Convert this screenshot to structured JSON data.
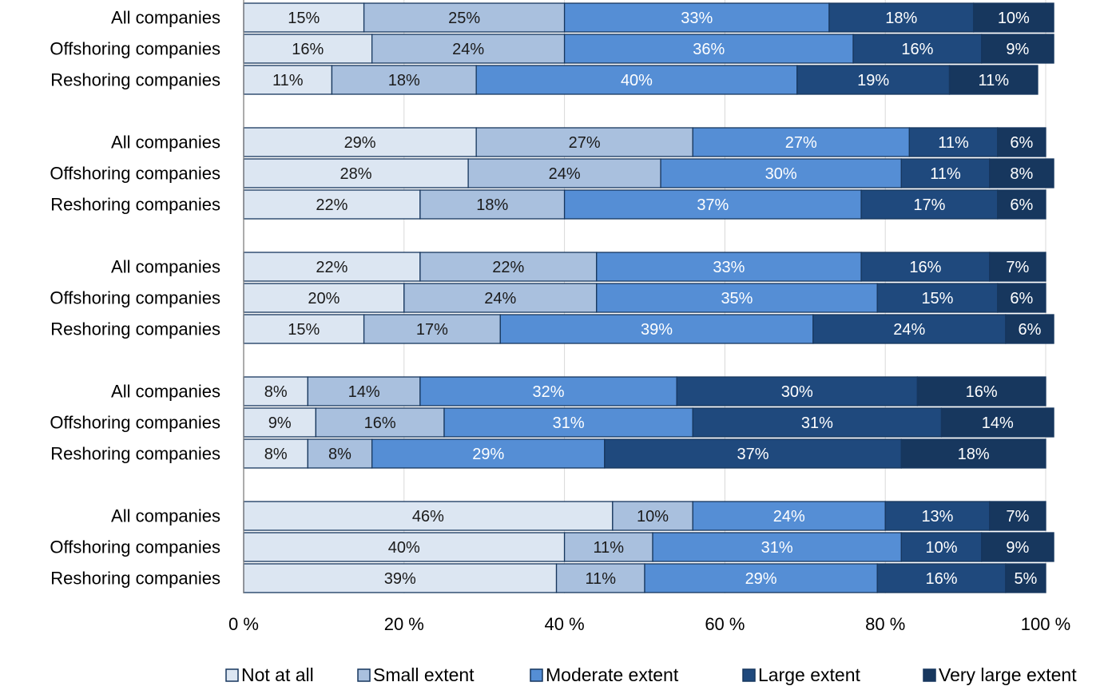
{
  "chart_data": {
    "type": "bar",
    "orientation": "horizontal",
    "stacked": "percent",
    "xlim": [
      0,
      100
    ],
    "x_ticks": [
      "0 %",
      "20 %",
      "40 %",
      "60 %",
      "80 %",
      "100 %"
    ],
    "grid": "vertical",
    "legend_position": "bottom",
    "series": [
      {
        "name": "Not at all",
        "color": "#dce6f2"
      },
      {
        "name": "Small extent",
        "color": "#a9c0de"
      },
      {
        "name": "Moderate extent",
        "color": "#558ed5"
      },
      {
        "name": "Large extent",
        "color": "#1f497d"
      },
      {
        "name": "Very large extent",
        "color": "#17375e"
      }
    ],
    "groups": [
      {
        "bars": [
          {
            "label": "All companies",
            "values": [
              15,
              25,
              33,
              18,
              10
            ]
          },
          {
            "label": "Offshoring companies",
            "values": [
              16,
              24,
              36,
              16,
              9
            ]
          },
          {
            "label": "Reshoring companies",
            "values": [
              11,
              18,
              40,
              19,
              11
            ]
          }
        ]
      },
      {
        "bars": [
          {
            "label": "All companies",
            "values": [
              29,
              27,
              27,
              11,
              6
            ]
          },
          {
            "label": "Offshoring companies",
            "values": [
              28,
              24,
              30,
              11,
              8
            ]
          },
          {
            "label": "Reshoring companies",
            "values": [
              22,
              18,
              37,
              17,
              6
            ]
          }
        ]
      },
      {
        "bars": [
          {
            "label": "All companies",
            "values": [
              22,
              22,
              33,
              16,
              7
            ]
          },
          {
            "label": "Offshoring companies",
            "values": [
              20,
              24,
              35,
              15,
              6
            ]
          },
          {
            "label": "Reshoring companies",
            "values": [
              15,
              17,
              39,
              24,
              6
            ]
          }
        ]
      },
      {
        "bars": [
          {
            "label": "All companies",
            "values": [
              8,
              14,
              32,
              30,
              16
            ]
          },
          {
            "label": "Offshoring companies",
            "values": [
              9,
              16,
              31,
              31,
              14
            ]
          },
          {
            "label": "Reshoring companies",
            "values": [
              8,
              8,
              29,
              37,
              18
            ]
          }
        ]
      },
      {
        "bars": [
          {
            "label": "All companies",
            "values": [
              46,
              10,
              24,
              13,
              7
            ]
          },
          {
            "label": "Offshoring companies",
            "values": [
              40,
              11,
              31,
              10,
              9
            ]
          },
          {
            "label": "Reshoring companies",
            "values": [
              39,
              11,
              29,
              16,
              5
            ]
          }
        ]
      }
    ]
  }
}
